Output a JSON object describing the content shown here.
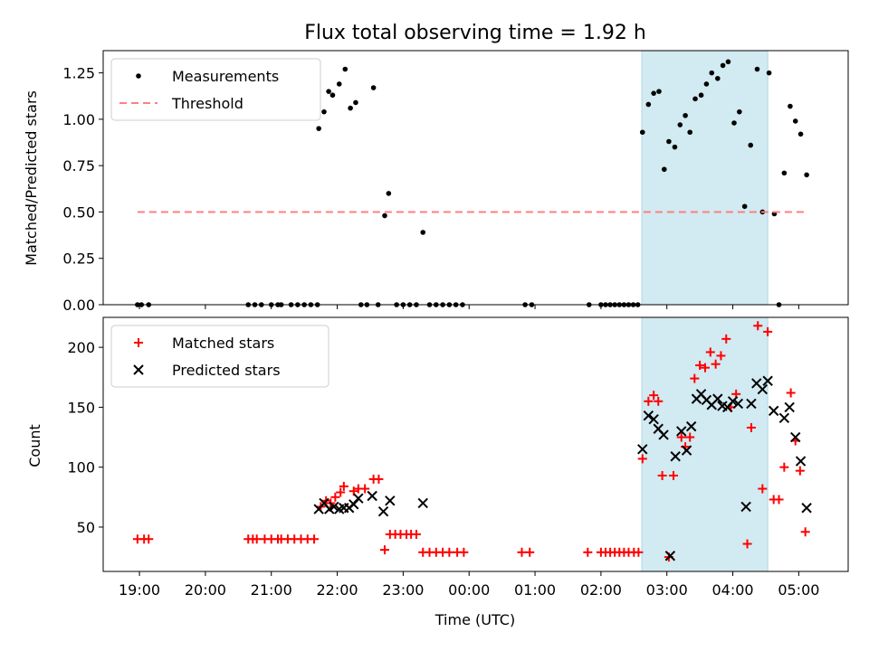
{
  "chart_data": [
    {
      "type": "scatter",
      "title": "Flux total observing time = 1.92 h",
      "xlabel": "",
      "ylabel": "Matched/Predicted stars",
      "ylim": [
        0,
        1.37
      ],
      "yticks": [
        0.0,
        0.25,
        0.5,
        0.75,
        1.0,
        1.25
      ],
      "ytick_labels": [
        "0.00",
        "0.25",
        "0.50",
        "0.75",
        "1.00",
        "1.25"
      ],
      "xlim_hours": [
        18.45,
        29.75
      ],
      "xticks_hours": [
        19,
        20,
        21,
        22,
        23,
        24,
        25,
        26,
        27,
        28,
        29
      ],
      "legend_position": "upper left",
      "highlight_span_hours": [
        26.62,
        28.53
      ],
      "highlight_color": "#add8e6",
      "series": [
        {
          "name": "Measurements",
          "marker": "dot",
          "color": "#000000",
          "points": [
            [
              18.97,
              0
            ],
            [
              19.03,
              0
            ],
            [
              19.14,
              0
            ],
            [
              20.65,
              0
            ],
            [
              20.75,
              0
            ],
            [
              20.85,
              0
            ],
            [
              21.0,
              0
            ],
            [
              21.1,
              0
            ],
            [
              21.15,
              0
            ],
            [
              21.3,
              0
            ],
            [
              21.4,
              0
            ],
            [
              21.5,
              0
            ],
            [
              21.6,
              0
            ],
            [
              21.7,
              0
            ],
            [
              21.72,
              0.95
            ],
            [
              21.8,
              1.04
            ],
            [
              21.87,
              1.15
            ],
            [
              21.93,
              1.13
            ],
            [
              22.03,
              1.19
            ],
            [
              22.12,
              1.27
            ],
            [
              22.2,
              1.06
            ],
            [
              22.28,
              1.09
            ],
            [
              22.55,
              1.17
            ],
            [
              22.36,
              0
            ],
            [
              22.45,
              0
            ],
            [
              22.62,
              0
            ],
            [
              22.72,
              0.48
            ],
            [
              22.78,
              0.6
            ],
            [
              22.9,
              0
            ],
            [
              23.0,
              0
            ],
            [
              23.1,
              0
            ],
            [
              23.2,
              0
            ],
            [
              23.3,
              0.39
            ],
            [
              23.4,
              0
            ],
            [
              23.5,
              0
            ],
            [
              23.6,
              0
            ],
            [
              23.7,
              0
            ],
            [
              23.8,
              0
            ],
            [
              23.9,
              0
            ],
            [
              24.85,
              0
            ],
            [
              24.95,
              0
            ],
            [
              25.82,
              0
            ],
            [
              26.0,
              0
            ],
            [
              26.07,
              0
            ],
            [
              26.14,
              0
            ],
            [
              26.21,
              0
            ],
            [
              26.28,
              0
            ],
            [
              26.35,
              0
            ],
            [
              26.42,
              0
            ],
            [
              26.49,
              0
            ],
            [
              26.56,
              0
            ],
            [
              26.63,
              0.93
            ],
            [
              26.72,
              1.08
            ],
            [
              26.8,
              1.14
            ],
            [
              26.88,
              1.15
            ],
            [
              26.96,
              0.73
            ],
            [
              27.03,
              0.88
            ],
            [
              27.12,
              0.85
            ],
            [
              27.2,
              0.97
            ],
            [
              27.28,
              1.02
            ],
            [
              27.35,
              0.93
            ],
            [
              27.43,
              1.11
            ],
            [
              27.52,
              1.13
            ],
            [
              27.6,
              1.19
            ],
            [
              27.68,
              1.25
            ],
            [
              27.77,
              1.22
            ],
            [
              27.85,
              1.29
            ],
            [
              27.93,
              1.31
            ],
            [
              28.02,
              0.98
            ],
            [
              28.1,
              1.04
            ],
            [
              28.18,
              0.53
            ],
            [
              28.27,
              0.86
            ],
            [
              28.37,
              1.27
            ],
            [
              28.45,
              0.5
            ],
            [
              28.55,
              1.25
            ],
            [
              28.63,
              0.49
            ],
            [
              28.7,
              0
            ],
            [
              28.78,
              0.71
            ],
            [
              28.87,
              1.07
            ],
            [
              28.95,
              0.99
            ],
            [
              29.03,
              0.92
            ],
            [
              29.12,
              0.7
            ]
          ]
        },
        {
          "name": "Threshold",
          "marker": "dashed-line",
          "color": "#ff7f7f",
          "points": [
            [
              18.97,
              0.5
            ],
            [
              29.12,
              0.5
            ]
          ]
        }
      ]
    },
    {
      "type": "scatter",
      "title": "",
      "xlabel": "Time (UTC)",
      "ylabel": "Count",
      "ylim": [
        13,
        225
      ],
      "yticks": [
        50,
        100,
        150,
        200
      ],
      "ytick_labels": [
        "50",
        "100",
        "150",
        "200"
      ],
      "xlim_hours": [
        18.45,
        29.75
      ],
      "xticks_hours": [
        19,
        20,
        21,
        22,
        23,
        24,
        25,
        26,
        27,
        28,
        29
      ],
      "xtick_labels": [
        "19:00",
        "20:00",
        "21:00",
        "22:00",
        "23:00",
        "00:00",
        "01:00",
        "02:00",
        "03:00",
        "04:00",
        "05:00"
      ],
      "legend_position": "upper left",
      "highlight_span_hours": [
        26.62,
        28.53
      ],
      "highlight_color": "#add8e6",
      "series": [
        {
          "name": "Matched stars",
          "marker": "plus",
          "color": "#ff0000",
          "points": [
            [
              18.97,
              40
            ],
            [
              19.07,
              40
            ],
            [
              19.14,
              40
            ],
            [
              20.65,
              40
            ],
            [
              20.72,
              40
            ],
            [
              20.78,
              40
            ],
            [
              20.9,
              40
            ],
            [
              21.0,
              40
            ],
            [
              21.1,
              40
            ],
            [
              21.15,
              40
            ],
            [
              21.25,
              40
            ],
            [
              21.35,
              40
            ],
            [
              21.45,
              40
            ],
            [
              21.55,
              40
            ],
            [
              21.65,
              40
            ],
            [
              21.75,
              67
            ],
            [
              21.83,
              72
            ],
            [
              21.9,
              70
            ],
            [
              21.97,
              75
            ],
            [
              22.05,
              79
            ],
            [
              22.1,
              84
            ],
            [
              22.25,
              80
            ],
            [
              22.32,
              82
            ],
            [
              22.42,
              82
            ],
            [
              22.55,
              90
            ],
            [
              22.63,
              90
            ],
            [
              22.72,
              31
            ],
            [
              22.8,
              44
            ],
            [
              22.88,
              44
            ],
            [
              22.96,
              44
            ],
            [
              23.05,
              44
            ],
            [
              23.12,
              44
            ],
            [
              23.2,
              44
            ],
            [
              23.3,
              29
            ],
            [
              23.4,
              29
            ],
            [
              23.5,
              29
            ],
            [
              23.6,
              29
            ],
            [
              23.7,
              29
            ],
            [
              23.82,
              29
            ],
            [
              23.92,
              29
            ],
            [
              24.8,
              29
            ],
            [
              24.92,
              29
            ],
            [
              25.8,
              29
            ],
            [
              26.0,
              29
            ],
            [
              26.07,
              29
            ],
            [
              26.14,
              29
            ],
            [
              26.21,
              29
            ],
            [
              26.28,
              29
            ],
            [
              26.35,
              29
            ],
            [
              26.42,
              29
            ],
            [
              26.5,
              29
            ],
            [
              26.57,
              29
            ],
            [
              26.63,
              107
            ],
            [
              26.72,
              155
            ],
            [
              26.8,
              160
            ],
            [
              26.87,
              155
            ],
            [
              26.93,
              93
            ],
            [
              27.03,
              25
            ],
            [
              27.1,
              93
            ],
            [
              27.22,
              125
            ],
            [
              27.28,
              117
            ],
            [
              27.35,
              125
            ],
            [
              27.42,
              174
            ],
            [
              27.5,
              185
            ],
            [
              27.58,
              183
            ],
            [
              27.66,
              196
            ],
            [
              27.74,
              186
            ],
            [
              27.82,
              193
            ],
            [
              27.9,
              207
            ],
            [
              27.97,
              150
            ],
            [
              28.05,
              161
            ],
            [
              28.22,
              36
            ],
            [
              28.28,
              133
            ],
            [
              28.38,
              218
            ],
            [
              28.45,
              82
            ],
            [
              28.53,
              213
            ],
            [
              28.62,
              73
            ],
            [
              28.7,
              73
            ],
            [
              28.78,
              100
            ],
            [
              28.88,
              162
            ],
            [
              28.95,
              122
            ],
            [
              29.02,
              97
            ],
            [
              29.1,
              46
            ]
          ]
        },
        {
          "name": "Predicted stars",
          "marker": "x",
          "color": "#000000",
          "points": [
            [
              21.72,
              65
            ],
            [
              21.8,
              70
            ],
            [
              21.88,
              65
            ],
            [
              21.95,
              67
            ],
            [
              22.03,
              65
            ],
            [
              22.1,
              66
            ],
            [
              22.18,
              66
            ],
            [
              22.25,
              69
            ],
            [
              22.32,
              74
            ],
            [
              22.53,
              76
            ],
            [
              22.7,
              63
            ],
            [
              22.8,
              72
            ],
            [
              23.3,
              70
            ],
            [
              26.63,
              115
            ],
            [
              26.72,
              143
            ],
            [
              26.8,
              140
            ],
            [
              26.87,
              132
            ],
            [
              26.95,
              127
            ],
            [
              27.05,
              26
            ],
            [
              27.13,
              109
            ],
            [
              27.22,
              130
            ],
            [
              27.3,
              114
            ],
            [
              27.37,
              134
            ],
            [
              27.45,
              157
            ],
            [
              27.52,
              161
            ],
            [
              27.6,
              156
            ],
            [
              27.68,
              152
            ],
            [
              27.77,
              157
            ],
            [
              27.84,
              151
            ],
            [
              27.92,
              150
            ],
            [
              28.0,
              155
            ],
            [
              28.08,
              153
            ],
            [
              28.2,
              67
            ],
            [
              28.28,
              153
            ],
            [
              28.36,
              170
            ],
            [
              28.45,
              165
            ],
            [
              28.53,
              172
            ],
            [
              28.62,
              147
            ],
            [
              28.78,
              141
            ],
            [
              28.86,
              150
            ],
            [
              28.95,
              125
            ],
            [
              29.03,
              105
            ],
            [
              29.12,
              66
            ]
          ]
        }
      ]
    }
  ]
}
